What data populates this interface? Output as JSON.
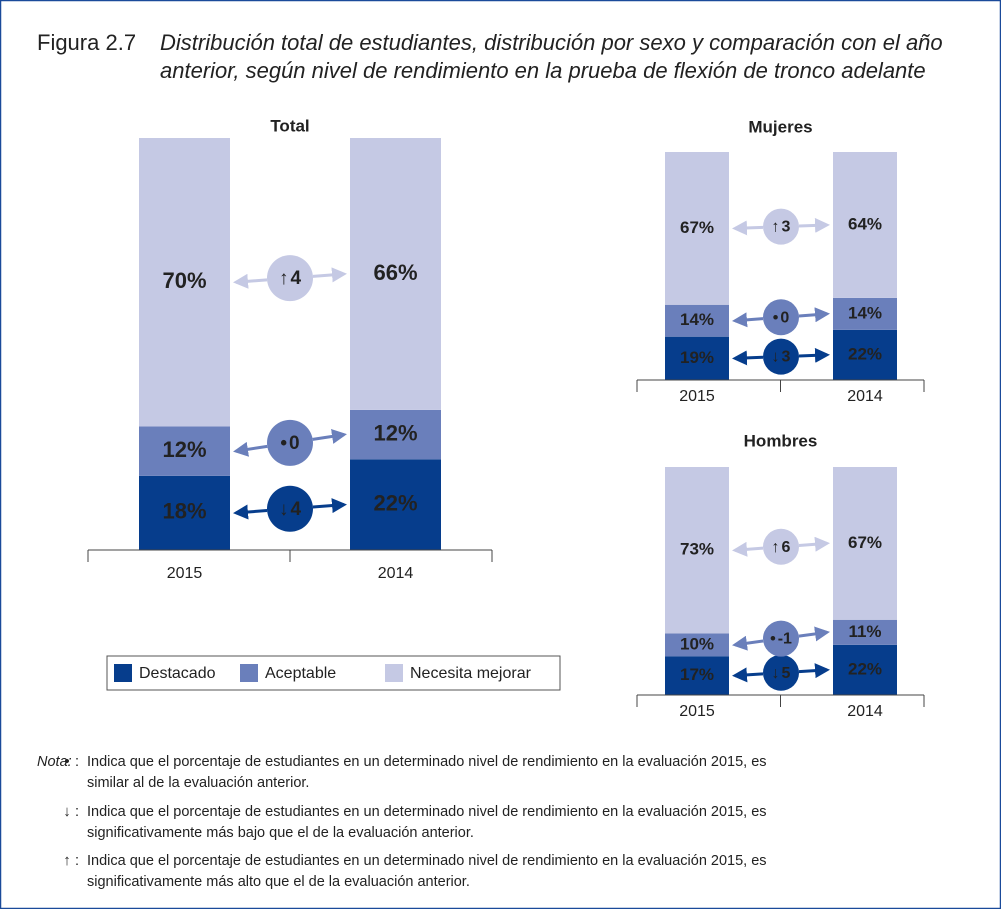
{
  "figure": {
    "label": "Figura 2.7",
    "caption": [
      "Distribución total de estudiantes, distribución por sexo y comparación con el año",
      "anterior, según nivel de rendimiento en la prueba de flexión de tronco adelante"
    ]
  },
  "chart_data": [
    {
      "type": "stacked_bar",
      "title": "Total",
      "categories": [
        "2015",
        "2014"
      ],
      "series": [
        {
          "name": "Destacado",
          "color": "#063d8c",
          "values": [
            18,
            22
          ],
          "value_labels": [
            "18%",
            "22%"
          ]
        },
        {
          "name": "Aceptable",
          "color": "#6a7fbb",
          "values": [
            12,
            12
          ],
          "value_labels": [
            "12%",
            "12%"
          ]
        },
        {
          "name": "Necesita mejorar",
          "color": "#c5c9e4",
          "values": [
            70,
            66
          ],
          "value_labels": [
            "70%",
            "66%"
          ]
        }
      ],
      "differences": [
        {
          "symbol": "↓",
          "value": 4
        },
        {
          "symbol": "•",
          "value": 0
        },
        {
          "symbol": "↑",
          "value": 4
        }
      ]
    },
    {
      "type": "stacked_bar",
      "title": "Mujeres",
      "categories": [
        "2015",
        "2014"
      ],
      "series": [
        {
          "name": "Destacado",
          "color": "#063d8c",
          "values": [
            19,
            22
          ],
          "value_labels": [
            "19%",
            "22%"
          ]
        },
        {
          "name": "Aceptable",
          "color": "#6a7fbb",
          "values": [
            14,
            14
          ],
          "value_labels": [
            "14%",
            "14%"
          ]
        },
        {
          "name": "Necesita mejorar",
          "color": "#c5c9e4",
          "values": [
            67,
            64
          ],
          "value_labels": [
            "67%",
            "64%"
          ]
        }
      ],
      "differences": [
        {
          "symbol": "↓",
          "value": 3
        },
        {
          "symbol": "•",
          "value": 0
        },
        {
          "symbol": "↑",
          "value": 3
        }
      ]
    },
    {
      "type": "stacked_bar",
      "title": "Hombres",
      "categories": [
        "2015",
        "2014"
      ],
      "series": [
        {
          "name": "Destacado",
          "color": "#063d8c",
          "values": [
            17,
            22
          ],
          "value_labels": [
            "17%",
            "22%"
          ]
        },
        {
          "name": "Aceptable",
          "color": "#6a7fbb",
          "values": [
            10,
            11
          ],
          "value_labels": [
            "10%",
            "11%"
          ]
        },
        {
          "name": "Necesita mejorar",
          "color": "#c5c9e4",
          "values": [
            73,
            67
          ],
          "value_labels": [
            "73%",
            "67%"
          ]
        }
      ],
      "differences": [
        {
          "symbol": "↓",
          "value": 5
        },
        {
          "symbol": "•",
          "value": -1
        },
        {
          "symbol": "↑",
          "value": 6
        }
      ]
    }
  ],
  "note": {
    "label": "Nota:",
    "items": [
      {
        "symbol": "•",
        "lines": [
          "Indica que el porcentaje de estudiantes en un determinado nivel de rendimiento en la evaluación 2015, es",
          "similar al de la evaluación anterior."
        ]
      },
      {
        "symbol": "↓",
        "lines": [
          "Indica que el porcentaje de estudiantes en un determinado nivel de rendimiento en la evaluación 2015, es",
          "significativamente más bajo que el de la evaluación anterior."
        ]
      },
      {
        "symbol": "↑",
        "lines": [
          "Indica que el porcentaje de estudiantes en un determinado nivel de rendimiento en la evaluación 2015, es",
          "significativamente más alto que el de la evaluación anterior."
        ]
      }
    ]
  }
}
